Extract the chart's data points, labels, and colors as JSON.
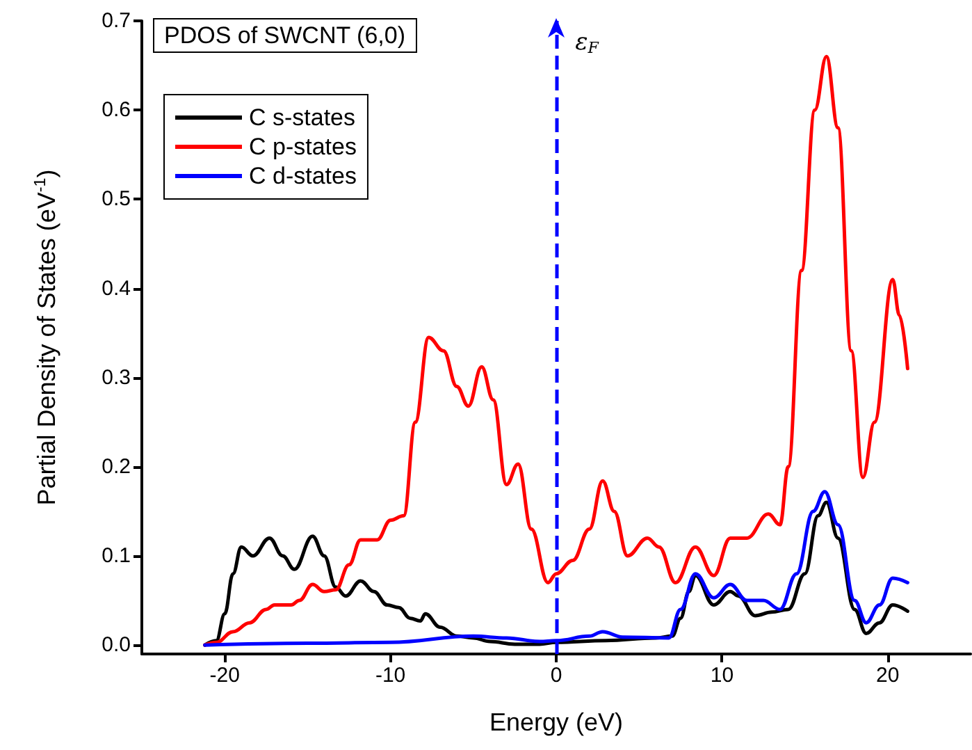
{
  "chart_data": {
    "type": "line",
    "title": "PDOS of SWCNT (6,0)",
    "xlabel": "Energy (eV)",
    "ylabel": "Partial Density of States (eV$^{-1}$)",
    "xlim": [
      -25,
      25
    ],
    "xticks": [
      -20,
      -10,
      0,
      10,
      20
    ],
    "ylim": [
      -0.01,
      0.7
    ],
    "yticks": [
      {
        "value": 0,
        "label": "0.0"
      },
      {
        "value": 0.1,
        "label": "0.1"
      },
      {
        "value": 0.2,
        "label": "0.2"
      },
      {
        "value": 0.3,
        "label": "0.3"
      },
      {
        "value": 0.4,
        "label": "0.4"
      },
      {
        "value": 0.5,
        "label": "0.5"
      },
      {
        "value": 0.6,
        "label": "0.6"
      },
      {
        "value": 0.7,
        "label": "0.7"
      }
    ],
    "grid": false,
    "legend": "top left",
    "marker": "none",
    "line_style": "solid",
    "ref_lines": [
      {
        "axis": "x",
        "value": 0,
        "label": "ε$_{F}$",
        "color": "#0000ff",
        "line_style": "dashed"
      }
    ],
    "series": [
      {
        "name": "C s-states",
        "color": "#000000",
        "x": [
          -21.2,
          -20.5,
          -20,
          -19.5,
          -19,
          -18.3,
          -17.3,
          -16.5,
          -15.8,
          -14.7,
          -14,
          -13.3,
          -12.7,
          -11.8,
          -11,
          -10.2,
          -9.5,
          -8.8,
          -8.2,
          -7.9,
          -7,
          -6,
          -5,
          -4,
          -2.5,
          -1,
          0,
          3,
          6,
          7,
          7.5,
          8,
          8.4,
          9.5,
          10.5,
          11,
          12,
          13,
          14,
          15,
          15.8,
          16.3,
          17,
          18,
          18.7,
          19.5,
          20.3,
          21.2
        ],
        "values": [
          0,
          0.005,
          0.035,
          0.08,
          0.11,
          0.1,
          0.12,
          0.1,
          0.085,
          0.122,
          0.1,
          0.065,
          0.055,
          0.072,
          0.06,
          0.045,
          0.042,
          0.03,
          0.027,
          0.035,
          0.02,
          0.01,
          0.008,
          0.004,
          0.001,
          0.001,
          0.003,
          0.005,
          0.008,
          0.01,
          0.03,
          0.06,
          0.078,
          0.045,
          0.06,
          0.055,
          0.033,
          0.037,
          0.04,
          0.08,
          0.145,
          0.16,
          0.12,
          0.04,
          0.013,
          0.025,
          0.045,
          0.038
        ]
      },
      {
        "name": "C p-states",
        "color": "#ff0000",
        "x": [
          -21.2,
          -20.5,
          -19.5,
          -18.5,
          -17.5,
          -17,
          -16,
          -15.5,
          -14.7,
          -14,
          -13.3,
          -12.5,
          -11.8,
          -10.8,
          -10,
          -9.2,
          -8.5,
          -7.7,
          -6.8,
          -6,
          -5.3,
          -4.5,
          -3.8,
          -3,
          -2.3,
          -1.5,
          -0.5,
          0,
          1,
          2,
          2.8,
          3.5,
          4.3,
          5.5,
          6.2,
          7.2,
          8.4,
          9.5,
          10.5,
          11.5,
          12.8,
          13.5,
          14,
          14.8,
          15.6,
          16.3,
          17,
          17.8,
          18.5,
          19.2,
          20.3,
          20.7,
          21.2
        ],
        "values": [
          0,
          0.003,
          0.015,
          0.025,
          0.04,
          0.045,
          0.045,
          0.05,
          0.068,
          0.06,
          0.062,
          0.09,
          0.118,
          0.118,
          0.14,
          0.145,
          0.25,
          0.345,
          0.33,
          0.29,
          0.268,
          0.312,
          0.275,
          0.18,
          0.203,
          0.13,
          0.07,
          0.08,
          0.095,
          0.13,
          0.184,
          0.15,
          0.1,
          0.12,
          0.11,
          0.07,
          0.11,
          0.078,
          0.12,
          0.12,
          0.147,
          0.135,
          0.2,
          0.42,
          0.6,
          0.66,
          0.58,
          0.33,
          0.188,
          0.25,
          0.41,
          0.37,
          0.31
        ]
      },
      {
        "name": "C d-states",
        "color": "#0000ff",
        "x": [
          -21.2,
          -15,
          -10,
          -5,
          -3,
          -1,
          0,
          2,
          2.8,
          4,
          6.8,
          7.5,
          8.4,
          9.5,
          10.5,
          11.5,
          12.5,
          13.5,
          14.5,
          15.5,
          16.2,
          17,
          18,
          18.7,
          19.5,
          20.3,
          21.2
        ],
        "values": [
          0,
          0.002,
          0.003,
          0.01,
          0.008,
          0.004,
          0.005,
          0.01,
          0.015,
          0.009,
          0.008,
          0.04,
          0.08,
          0.053,
          0.068,
          0.05,
          0.05,
          0.04,
          0.08,
          0.15,
          0.172,
          0.135,
          0.05,
          0.025,
          0.045,
          0.075,
          0.07
        ]
      }
    ]
  }
}
